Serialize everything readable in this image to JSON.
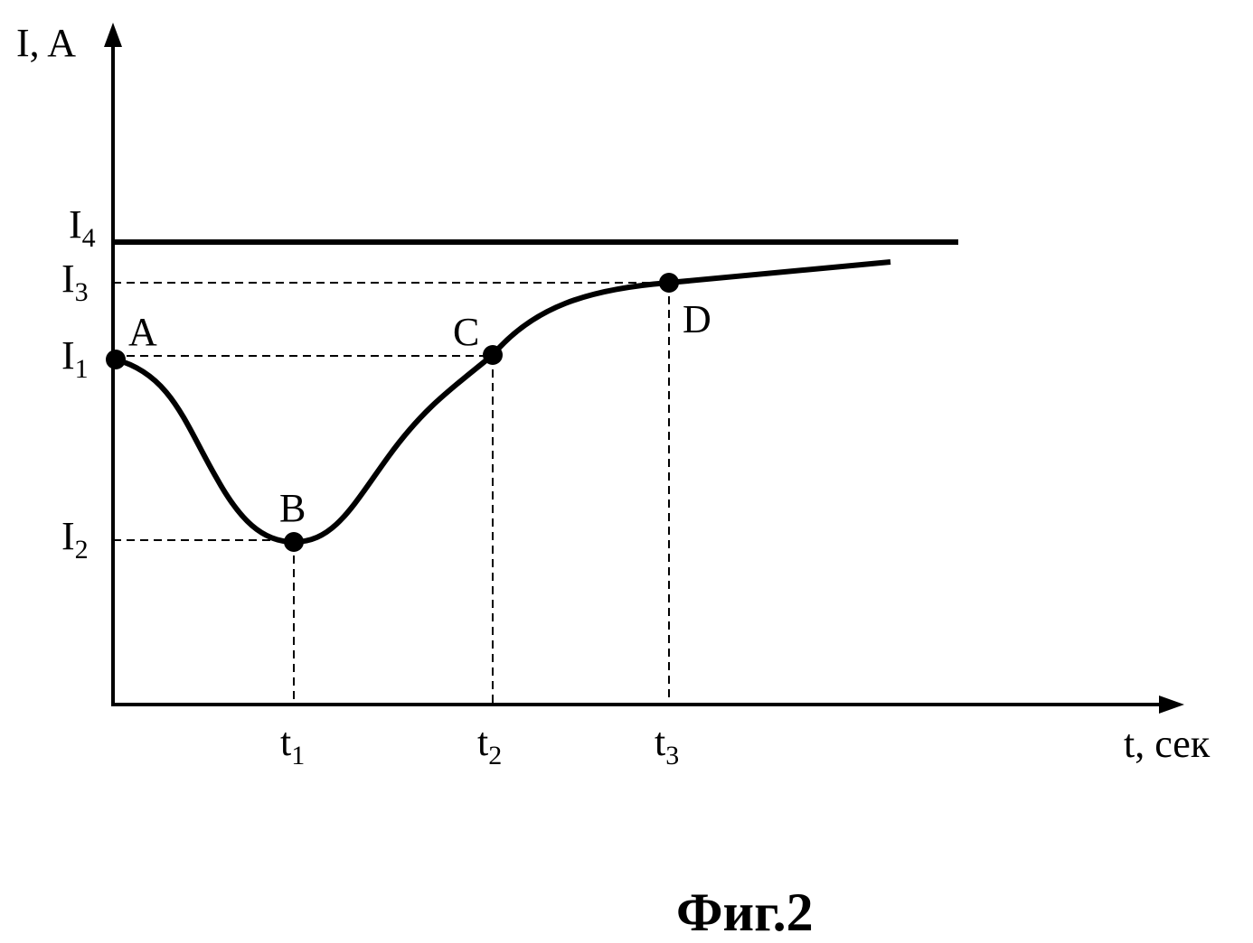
{
  "axes": {
    "y_label": "I, A",
    "x_label": "t, сек"
  },
  "levels": [
    {
      "base": "I",
      "sub": "4"
    },
    {
      "base": "I",
      "sub": "3"
    },
    {
      "base": "I",
      "sub": "1"
    },
    {
      "base": "I",
      "sub": "2"
    }
  ],
  "times": [
    {
      "base": "t",
      "sub": "1"
    },
    {
      "base": "t",
      "sub": "2"
    },
    {
      "base": "t",
      "sub": "3"
    }
  ],
  "points": [
    "A",
    "B",
    "C",
    "D"
  ],
  "caption": "Фиг.2"
}
